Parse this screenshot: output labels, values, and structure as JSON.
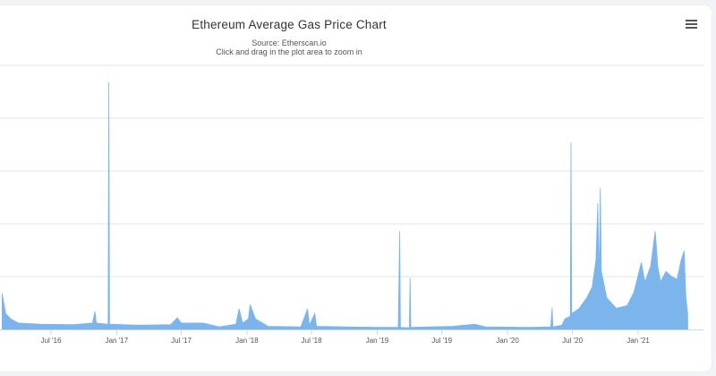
{
  "chart_data": {
    "type": "area",
    "title": "Ethereum Average Gas Price Chart",
    "subtitle": "Source: Etherscan.io",
    "instruction": "Click and drag in the plot area to zoom in",
    "xlabel": "",
    "ylabel": "",
    "ylim": [
      0,
      500
    ],
    "grid": true,
    "color": "#7cb5ec",
    "x_tick_labels": [
      "Jul '16",
      "Jan '17",
      "Jul '17",
      "Jan '18",
      "Jul '18",
      "Jan '19",
      "Jul '19",
      "Jan '20",
      "Jul '20",
      "Jan '21"
    ],
    "x_tick_dates": [
      "2016-07-01",
      "2017-01-01",
      "2017-07-01",
      "2018-01-01",
      "2018-07-01",
      "2019-01-01",
      "2019-07-01",
      "2020-01-01",
      "2020-07-01",
      "2021-01-01"
    ],
    "points": [
      [
        "2016-02-15",
        68
      ],
      [
        "2016-02-25",
        30
      ],
      [
        "2016-03-10",
        20
      ],
      [
        "2016-04-01",
        12
      ],
      [
        "2016-06-01",
        10
      ],
      [
        "2016-09-01",
        9
      ],
      [
        "2016-10-25",
        12
      ],
      [
        "2016-11-01",
        34
      ],
      [
        "2016-11-05",
        12
      ],
      [
        "2016-12-08",
        10
      ],
      [
        "2016-12-10",
        468
      ],
      [
        "2016-12-12",
        10
      ],
      [
        "2017-03-01",
        8
      ],
      [
        "2017-06-01",
        9
      ],
      [
        "2017-06-20",
        22
      ],
      [
        "2017-07-01",
        12
      ],
      [
        "2017-09-01",
        12
      ],
      [
        "2017-10-15",
        5
      ],
      [
        "2017-12-01",
        10
      ],
      [
        "2017-12-10",
        39
      ],
      [
        "2017-12-20",
        12
      ],
      [
        "2018-01-05",
        20
      ],
      [
        "2018-01-10",
        47
      ],
      [
        "2018-01-25",
        20
      ],
      [
        "2018-03-01",
        6
      ],
      [
        "2018-06-01",
        5
      ],
      [
        "2018-06-20",
        39
      ],
      [
        "2018-06-25",
        8
      ],
      [
        "2018-07-10",
        30
      ],
      [
        "2018-07-15",
        6
      ],
      [
        "2018-10-01",
        5
      ],
      [
        "2019-01-01",
        4
      ],
      [
        "2019-03-01",
        4
      ],
      [
        "2019-03-05",
        186
      ],
      [
        "2019-03-07",
        4
      ],
      [
        "2019-04-01",
        3
      ],
      [
        "2019-04-03",
        98
      ],
      [
        "2019-04-05",
        4
      ],
      [
        "2019-08-01",
        6
      ],
      [
        "2019-10-01",
        10
      ],
      [
        "2019-11-01",
        5
      ],
      [
        "2020-03-01",
        4
      ],
      [
        "2020-05-01",
        5
      ],
      [
        "2020-05-05",
        41
      ],
      [
        "2020-05-07",
        5
      ],
      [
        "2020-06-01",
        8
      ],
      [
        "2020-06-10",
        20
      ],
      [
        "2020-06-25",
        25
      ],
      [
        "2020-06-27",
        354
      ],
      [
        "2020-06-29",
        30
      ],
      [
        "2020-07-20",
        40
      ],
      [
        "2020-08-10",
        60
      ],
      [
        "2020-08-25",
        80
      ],
      [
        "2020-09-05",
        132
      ],
      [
        "2020-09-10",
        239
      ],
      [
        "2020-09-14",
        90
      ],
      [
        "2020-09-17",
        268
      ],
      [
        "2020-09-20",
        110
      ],
      [
        "2020-10-05",
        60
      ],
      [
        "2020-11-01",
        40
      ],
      [
        "2020-12-01",
        45
      ],
      [
        "2020-12-20",
        70
      ],
      [
        "2021-01-10",
        127
      ],
      [
        "2021-01-20",
        90
      ],
      [
        "2021-02-05",
        120
      ],
      [
        "2021-02-18",
        186
      ],
      [
        "2021-02-25",
        120
      ],
      [
        "2021-03-05",
        90
      ],
      [
        "2021-03-20",
        110
      ],
      [
        "2021-04-05",
        100
      ],
      [
        "2021-04-20",
        95
      ],
      [
        "2021-05-01",
        130
      ],
      [
        "2021-05-10",
        149
      ],
      [
        "2021-05-15",
        60
      ],
      [
        "2021-05-20",
        30
      ]
    ]
  },
  "menu_icon": "hamburger-menu-icon"
}
